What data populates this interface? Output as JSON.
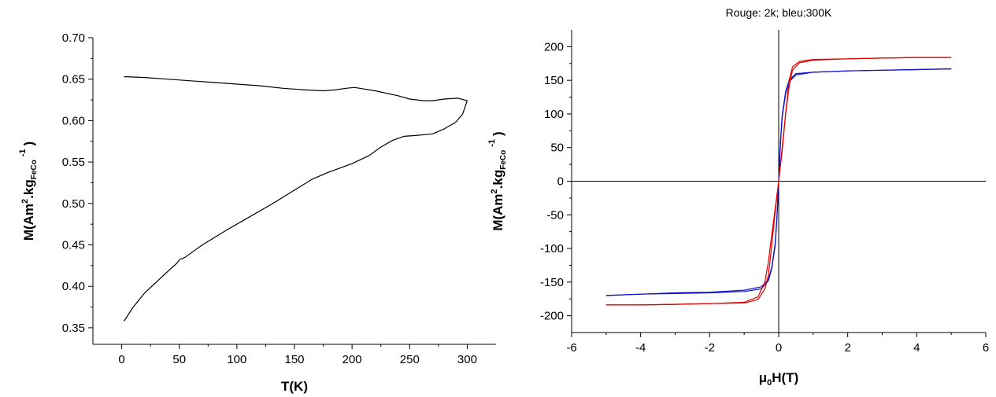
{
  "chart_data": [
    {
      "type": "line",
      "title": "",
      "xlabel": {
        "main": "T(K)"
      },
      "ylabel": {
        "main": "M(Am",
        "sup": "2",
        "mid": ".kg",
        "sub": "FeCo",
        "sup2": "-1",
        "end": ")"
      },
      "xlim": [
        -25,
        325
      ],
      "ylim": [
        0.33,
        0.7
      ],
      "xticks": [
        0,
        50,
        100,
        150,
        200,
        250,
        300
      ],
      "yticks": [
        0.35,
        0.4,
        0.45,
        0.5,
        0.55,
        0.6,
        0.65,
        0.7
      ],
      "ytick_labels": [
        "0.35",
        "0.40",
        "0.45",
        "0.50",
        "0.55",
        "0.60",
        "0.65",
        "0.70"
      ],
      "grid": false,
      "series": [
        {
          "color": "#000000",
          "x": [
            2,
            10,
            20,
            30,
            40,
            48,
            50,
            55,
            70,
            90,
            110,
            130,
            150,
            165,
            180,
            200,
            215,
            225,
            235,
            245,
            255,
            270,
            280,
            290,
            296,
            300,
            292,
            280,
            270,
            262,
            250,
            240,
            220,
            202,
            195,
            185,
            175,
            160,
            140,
            120,
            100,
            80,
            60,
            40,
            20,
            2
          ],
          "y": [
            0.358,
            0.375,
            0.392,
            0.405,
            0.418,
            0.428,
            0.432,
            0.435,
            0.45,
            0.467,
            0.483,
            0.499,
            0.516,
            0.529,
            0.538,
            0.548,
            0.558,
            0.568,
            0.576,
            0.581,
            0.582,
            0.584,
            0.59,
            0.598,
            0.608,
            0.624,
            0.627,
            0.626,
            0.624,
            0.624,
            0.626,
            0.63,
            0.636,
            0.64,
            0.639,
            0.637,
            0.636,
            0.637,
            0.639,
            0.642,
            0.644,
            0.646,
            0.648,
            0.65,
            0.652,
            0.653
          ]
        }
      ]
    },
    {
      "type": "line",
      "title": "Rouge: 2k; bleu:300K",
      "xlabel": {
        "main": "μ",
        "sub": "0",
        "end": "H(T)"
      },
      "ylabel": {
        "main": "M(Am",
        "sup": "2",
        "mid": ".kg",
        "sub": "FeCo",
        "sup2": "-1",
        "end": ")"
      },
      "xlim": [
        -6,
        6
      ],
      "ylim": [
        -225,
        225
      ],
      "xticks": [
        -6,
        -4,
        -2,
        0,
        2,
        4,
        6
      ],
      "yticks": [
        -200,
        -150,
        -100,
        -50,
        0,
        50,
        100,
        150,
        200
      ],
      "grid": false,
      "zero_lines": true,
      "series": [
        {
          "color": "#1010c8",
          "x": [
            -5,
            -4,
            -3,
            -2,
            -1,
            -0.5,
            -0.3,
            -0.2,
            -0.1,
            -0.05,
            0,
            0.05,
            0.1,
            0.2,
            0.3,
            0.5,
            1,
            2,
            3,
            4,
            5
          ],
          "y": [
            -170,
            -168,
            -167,
            -166,
            -164,
            -160,
            -148,
            -130,
            -95,
            -55,
            0,
            55,
            95,
            130,
            148,
            158,
            162,
            164,
            165,
            166,
            167
          ]
        },
        {
          "color": "#1010c8",
          "x": [
            5,
            4,
            3,
            2,
            1,
            0.5,
            0.3,
            0.2,
            0.1,
            0.05,
            0,
            -0.05,
            -0.1,
            -0.2,
            -0.3,
            -0.5,
            -1,
            -2,
            -3,
            -4,
            -5
          ],
          "y": [
            167,
            166,
            165,
            164,
            162,
            160,
            150,
            133,
            98,
            58,
            0,
            -52,
            -92,
            -128,
            -146,
            -157,
            -162,
            -165,
            -166,
            -168,
            -170
          ]
        },
        {
          "color": "#e00000",
          "x": [
            -5,
            -4,
            -3,
            -2,
            -1,
            -0.6,
            -0.4,
            -0.3,
            -0.2,
            -0.1,
            0,
            0.1,
            0.2,
            0.3,
            0.4,
            0.6,
            1,
            2,
            3,
            4,
            5
          ],
          "y": [
            -184,
            -184,
            -183,
            -182,
            -180,
            -172,
            -150,
            -120,
            -80,
            -40,
            0,
            45,
            100,
            150,
            170,
            178,
            181,
            182,
            183,
            184,
            184
          ],
          "note_hidden": false
        },
        {
          "color": "#e00000",
          "x": [
            5,
            4,
            3,
            2,
            1,
            0.6,
            0.4,
            0.3,
            0.2,
            0.1,
            0,
            -0.1,
            -0.2,
            -0.3,
            -0.4,
            -0.6,
            -1,
            -2,
            -3,
            -4,
            -5
          ],
          "y": [
            184,
            184,
            183,
            182,
            180,
            176,
            165,
            140,
            100,
            50,
            0,
            -45,
            -95,
            -140,
            -160,
            -176,
            -181,
            -182,
            -183,
            -184,
            -184
          ]
        }
      ]
    }
  ]
}
